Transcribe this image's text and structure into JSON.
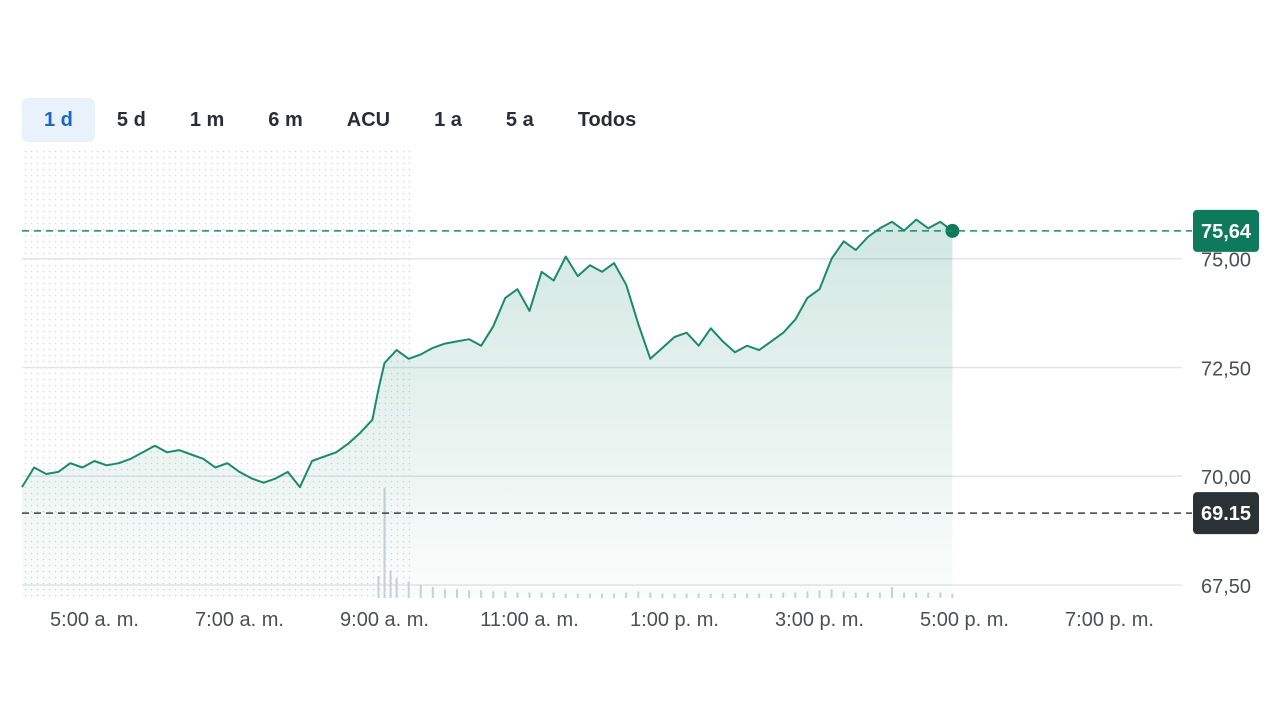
{
  "range_tabs": {
    "items": [
      {
        "label": "1 d",
        "active": true
      },
      {
        "label": "5 d",
        "active": false
      },
      {
        "label": "1 m",
        "active": false
      },
      {
        "label": "6 m",
        "active": false
      },
      {
        "label": "ACU",
        "active": false
      },
      {
        "label": "1 a",
        "active": false
      },
      {
        "label": "5 a",
        "active": false
      },
      {
        "label": "Todos",
        "active": false
      }
    ]
  },
  "colors": {
    "line": "#1c8a6a",
    "current_badge": "#0e7a5b",
    "previous_close_badge": "#2b3134",
    "grid": "#e3e5e8",
    "active_tab_bg": "#e9f1fb",
    "active_tab_text": "#1a66c7"
  },
  "chart_data": {
    "type": "area",
    "x_unit": "time of day",
    "xlim": [
      "4:00 a. m.",
      "8:00 p. m."
    ],
    "ylim": [
      67.2,
      77.5
    ],
    "grid": "horizontal",
    "pre_market_shaded": {
      "from": "4:00 a. m.",
      "to": "9:30 a. m."
    },
    "y_ticks": [
      {
        "value": 67.5,
        "label": "67,50"
      },
      {
        "value": 70.0,
        "label": "70,00"
      },
      {
        "value": 72.5,
        "label": "72,50"
      },
      {
        "value": 75.0,
        "label": "75,00"
      }
    ],
    "x_ticks": [
      {
        "time": "5:00",
        "label": "5:00 a. m."
      },
      {
        "time": "7:00",
        "label": "7:00 a. m."
      },
      {
        "time": "9:00",
        "label": "9:00 a. m."
      },
      {
        "time": "11:00",
        "label": "11:00 a. m."
      },
      {
        "time": "13:00",
        "label": "1:00 p. m."
      },
      {
        "time": "15:00",
        "label": "3:00 p. m."
      },
      {
        "time": "17:00",
        "label": "5:00 p. m."
      },
      {
        "time": "19:00",
        "label": "7:00 p. m."
      }
    ],
    "current_price": {
      "value": 75.64,
      "label": "75,64"
    },
    "previous_close": {
      "value": 69.15,
      "label": "69.15"
    },
    "series": [
      {
        "points": [
          [
            "4:00",
            69.75
          ],
          [
            "4:10",
            70.2
          ],
          [
            "4:20",
            70.05
          ],
          [
            "4:30",
            70.1
          ],
          [
            "4:40",
            70.3
          ],
          [
            "4:50",
            70.2
          ],
          [
            "5:00",
            70.35
          ],
          [
            "5:10",
            70.25
          ],
          [
            "5:20",
            70.3
          ],
          [
            "5:30",
            70.4
          ],
          [
            "5:40",
            70.55
          ],
          [
            "5:50",
            70.7
          ],
          [
            "6:00",
            70.55
          ],
          [
            "6:10",
            70.6
          ],
          [
            "6:20",
            70.5
          ],
          [
            "6:30",
            70.4
          ],
          [
            "6:40",
            70.2
          ],
          [
            "6:50",
            70.3
          ],
          [
            "7:00",
            70.1
          ],
          [
            "7:10",
            69.95
          ],
          [
            "7:20",
            69.85
          ],
          [
            "7:30",
            69.95
          ],
          [
            "7:40",
            70.1
          ],
          [
            "7:50",
            69.75
          ],
          [
            "8:00",
            70.35
          ],
          [
            "8:10",
            70.45
          ],
          [
            "8:20",
            70.55
          ],
          [
            "8:30",
            70.75
          ],
          [
            "8:40",
            71.0
          ],
          [
            "8:50",
            71.3
          ],
          [
            "8:55",
            72.0
          ],
          [
            "9:00",
            72.6
          ],
          [
            "9:10",
            72.9
          ],
          [
            "9:20",
            72.7
          ],
          [
            "9:30",
            72.8
          ],
          [
            "9:40",
            72.95
          ],
          [
            "9:50",
            73.05
          ],
          [
            "10:00",
            73.1
          ],
          [
            "10:10",
            73.15
          ],
          [
            "10:20",
            73.0
          ],
          [
            "10:30",
            73.45
          ],
          [
            "10:40",
            74.1
          ],
          [
            "10:50",
            74.3
          ],
          [
            "11:00",
            73.8
          ],
          [
            "11:10",
            74.7
          ],
          [
            "11:20",
            74.5
          ],
          [
            "11:30",
            75.05
          ],
          [
            "11:40",
            74.6
          ],
          [
            "11:50",
            74.85
          ],
          [
            "12:00",
            74.7
          ],
          [
            "12:10",
            74.9
          ],
          [
            "12:20",
            74.4
          ],
          [
            "12:30",
            73.5
          ],
          [
            "12:40",
            72.7
          ],
          [
            "12:50",
            72.95
          ],
          [
            "13:00",
            73.2
          ],
          [
            "13:10",
            73.3
          ],
          [
            "13:20",
            73.0
          ],
          [
            "13:30",
            73.4
          ],
          [
            "13:40",
            73.1
          ],
          [
            "13:50",
            72.85
          ],
          [
            "14:00",
            73.0
          ],
          [
            "14:10",
            72.9
          ],
          [
            "14:20",
            73.1
          ],
          [
            "14:30",
            73.3
          ],
          [
            "14:40",
            73.6
          ],
          [
            "14:50",
            74.1
          ],
          [
            "15:00",
            74.3
          ],
          [
            "15:10",
            75.0
          ],
          [
            "15:20",
            75.4
          ],
          [
            "15:30",
            75.2
          ],
          [
            "15:40",
            75.5
          ],
          [
            "15:50",
            75.7
          ],
          [
            "16:00",
            75.85
          ],
          [
            "16:10",
            75.65
          ],
          [
            "16:20",
            75.9
          ],
          [
            "16:30",
            75.7
          ],
          [
            "16:40",
            75.85
          ],
          [
            "16:50",
            75.64
          ]
        ]
      }
    ],
    "volume": [
      [
        "8:55",
        0.2
      ],
      [
        "9:00",
        1.0
      ],
      [
        "9:05",
        0.25
      ],
      [
        "9:10",
        0.18
      ],
      [
        "9:20",
        0.15
      ],
      [
        "9:30",
        0.12
      ],
      [
        "9:40",
        0.1
      ],
      [
        "9:50",
        0.08
      ],
      [
        "10:00",
        0.08
      ],
      [
        "10:10",
        0.07
      ],
      [
        "10:20",
        0.07
      ],
      [
        "10:30",
        0.06
      ],
      [
        "10:40",
        0.06
      ],
      [
        "10:50",
        0.05
      ],
      [
        "11:00",
        0.05
      ],
      [
        "11:10",
        0.05
      ],
      [
        "11:20",
        0.05
      ],
      [
        "11:30",
        0.04
      ],
      [
        "11:40",
        0.04
      ],
      [
        "11:50",
        0.04
      ],
      [
        "12:00",
        0.04
      ],
      [
        "12:10",
        0.04
      ],
      [
        "12:20",
        0.05
      ],
      [
        "12:30",
        0.06
      ],
      [
        "12:40",
        0.05
      ],
      [
        "12:50",
        0.04
      ],
      [
        "13:00",
        0.04
      ],
      [
        "13:10",
        0.04
      ],
      [
        "13:20",
        0.04
      ],
      [
        "13:30",
        0.04
      ],
      [
        "13:40",
        0.04
      ],
      [
        "13:50",
        0.04
      ],
      [
        "14:00",
        0.04
      ],
      [
        "14:10",
        0.04
      ],
      [
        "14:20",
        0.04
      ],
      [
        "14:30",
        0.05
      ],
      [
        "14:40",
        0.05
      ],
      [
        "14:50",
        0.06
      ],
      [
        "15:00",
        0.07
      ],
      [
        "15:10",
        0.08
      ],
      [
        "15:20",
        0.06
      ],
      [
        "15:30",
        0.05
      ],
      [
        "15:40",
        0.05
      ],
      [
        "15:50",
        0.05
      ],
      [
        "16:00",
        0.1
      ],
      [
        "16:10",
        0.05
      ],
      [
        "16:20",
        0.05
      ],
      [
        "16:30",
        0.05
      ],
      [
        "16:40",
        0.05
      ],
      [
        "16:50",
        0.04
      ]
    ]
  }
}
